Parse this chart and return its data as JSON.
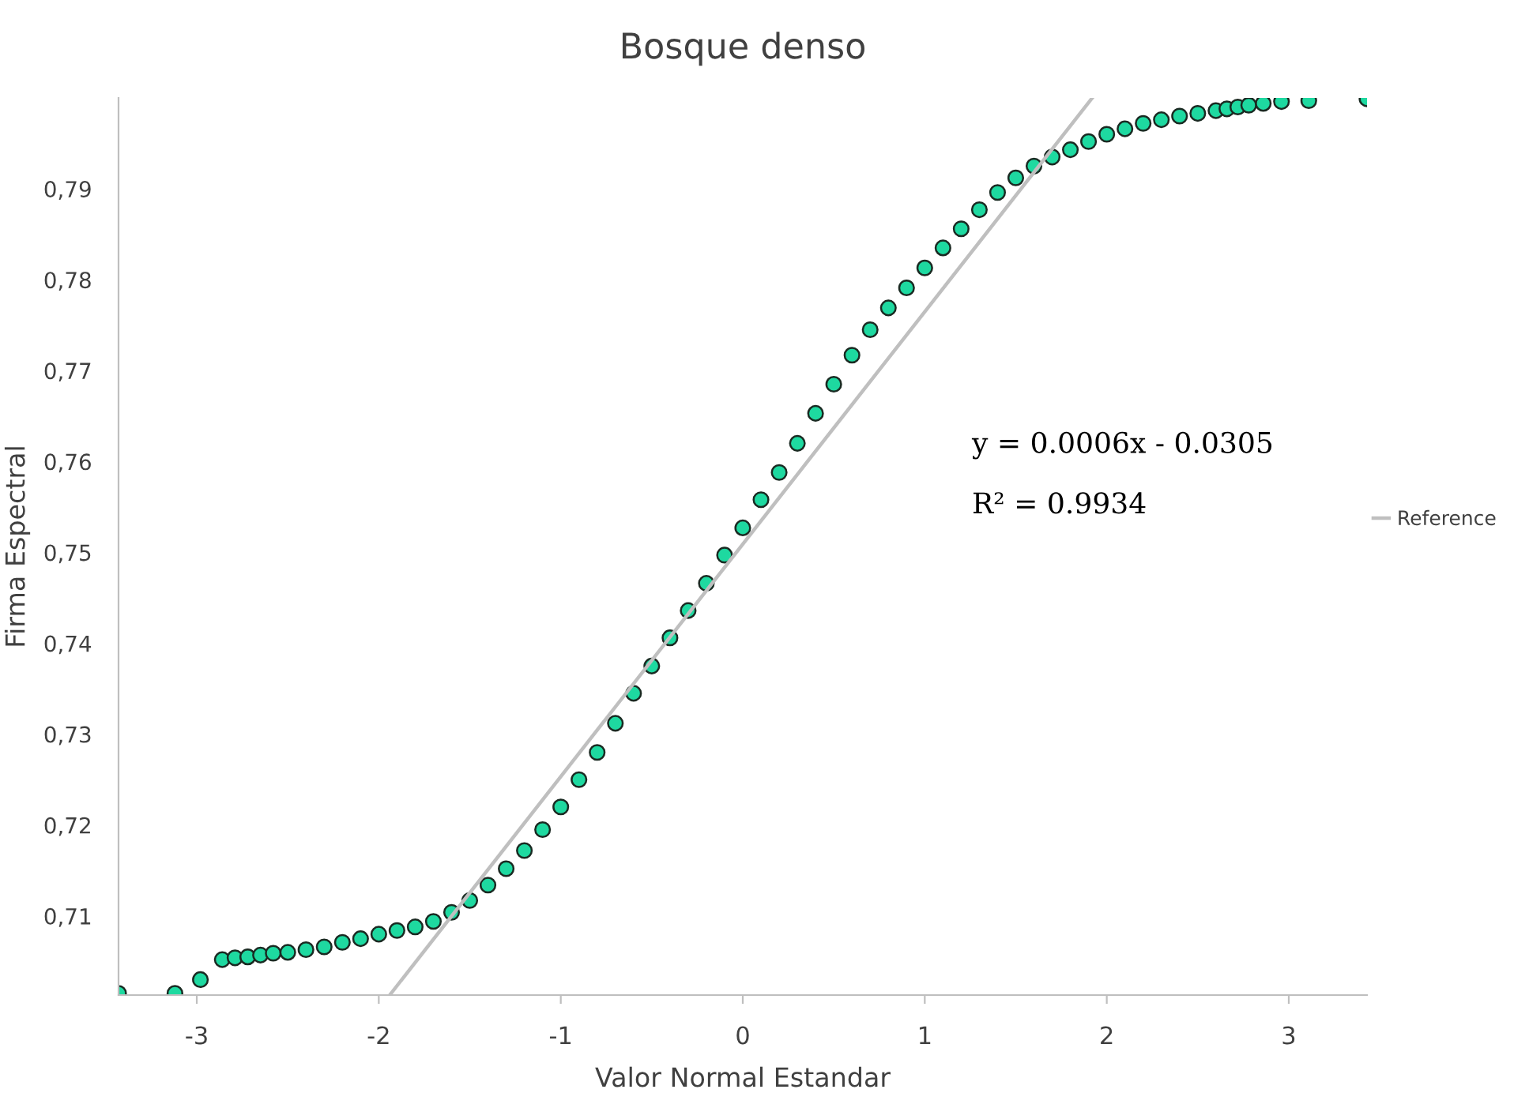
{
  "chart_data": {
    "type": "scatter",
    "title": "Bosque denso",
    "xlabel": "Valor Normal Estandar",
    "ylabel": "Firma Espectral",
    "annotations": [
      "y = 0.0006x - 0.0305",
      "R² = 0.9934"
    ],
    "xlim": [
      -3.43,
      3.43
    ],
    "ylim": [
      0.7013,
      0.8
    ],
    "xticks": [
      {
        "value": -3,
        "label": "-3"
      },
      {
        "value": -2,
        "label": "-2"
      },
      {
        "value": -1,
        "label": "-1"
      },
      {
        "value": 0,
        "label": "0"
      },
      {
        "value": 1,
        "label": "1"
      },
      {
        "value": 2,
        "label": "2"
      },
      {
        "value": 3,
        "label": "3"
      }
    ],
    "yticks": [
      {
        "value": 0.71,
        "label": "0,71"
      },
      {
        "value": 0.72,
        "label": "0,72"
      },
      {
        "value": 0.73,
        "label": "0,73"
      },
      {
        "value": 0.74,
        "label": "0,74"
      },
      {
        "value": 0.75,
        "label": "0,75"
      },
      {
        "value": 0.76,
        "label": "0,76"
      },
      {
        "value": 0.77,
        "label": "0,77"
      },
      {
        "value": 0.78,
        "label": "0,78"
      },
      {
        "value": 0.79,
        "label": "0,79"
      }
    ],
    "grid": false,
    "legend": "right",
    "series": [
      {
        "marker": "circle",
        "color": "#1ed9a0",
        "x": [
          -3.43,
          -3.12,
          -2.98,
          -2.86,
          -2.79,
          -2.72,
          -2.65,
          -2.58,
          -2.5,
          -2.4,
          -2.3,
          -2.2,
          -2.1,
          -2.0,
          -1.9,
          -1.8,
          -1.7,
          -1.6,
          -1.5,
          -1.4,
          -1.3,
          -1.2,
          -1.1,
          -1.0,
          -0.9,
          -0.8,
          -0.7,
          -0.6,
          -0.5,
          -0.4,
          -0.3,
          -0.2,
          -0.1,
          0.0,
          0.1,
          0.2,
          0.3,
          0.4,
          0.5,
          0.6,
          0.7,
          0.8,
          0.9,
          1.0,
          1.1,
          1.2,
          1.3,
          1.4,
          1.5,
          1.6,
          1.7,
          1.8,
          1.9,
          2.0,
          2.1,
          2.2,
          2.3,
          2.4,
          2.5,
          2.6,
          2.66,
          2.72,
          2.78,
          2.86,
          2.96,
          3.11,
          3.43
        ],
        "values": [
          0.7015,
          0.7015,
          0.703,
          0.7052,
          0.7054,
          0.7055,
          0.7057,
          0.7059,
          0.706,
          0.7063,
          0.7066,
          0.7071,
          0.7075,
          0.708,
          0.7084,
          0.7088,
          0.7094,
          0.7104,
          0.7117,
          0.7134,
          0.7152,
          0.7172,
          0.7195,
          0.722,
          0.725,
          0.728,
          0.7312,
          0.7345,
          0.7375,
          0.7406,
          0.7436,
          0.7466,
          0.7497,
          0.7527,
          0.7558,
          0.7588,
          0.762,
          0.7653,
          0.7685,
          0.7717,
          0.7745,
          0.7769,
          0.7791,
          0.7813,
          0.7835,
          0.7856,
          0.7877,
          0.7896,
          0.7912,
          0.7925,
          0.7935,
          0.7943,
          0.7952,
          0.796,
          0.7966,
          0.7972,
          0.7976,
          0.798,
          0.7983,
          0.7986,
          0.7988,
          0.799,
          0.7992,
          0.7994,
          0.7996,
          0.7997,
          0.7999
        ]
      },
      {
        "type": "line",
        "marker": "none",
        "name": "Reference",
        "color": "#bfbfbf",
        "x": [
          -1.94,
          1.92
        ],
        "values": [
          0.7013,
          0.8
        ]
      }
    ]
  }
}
